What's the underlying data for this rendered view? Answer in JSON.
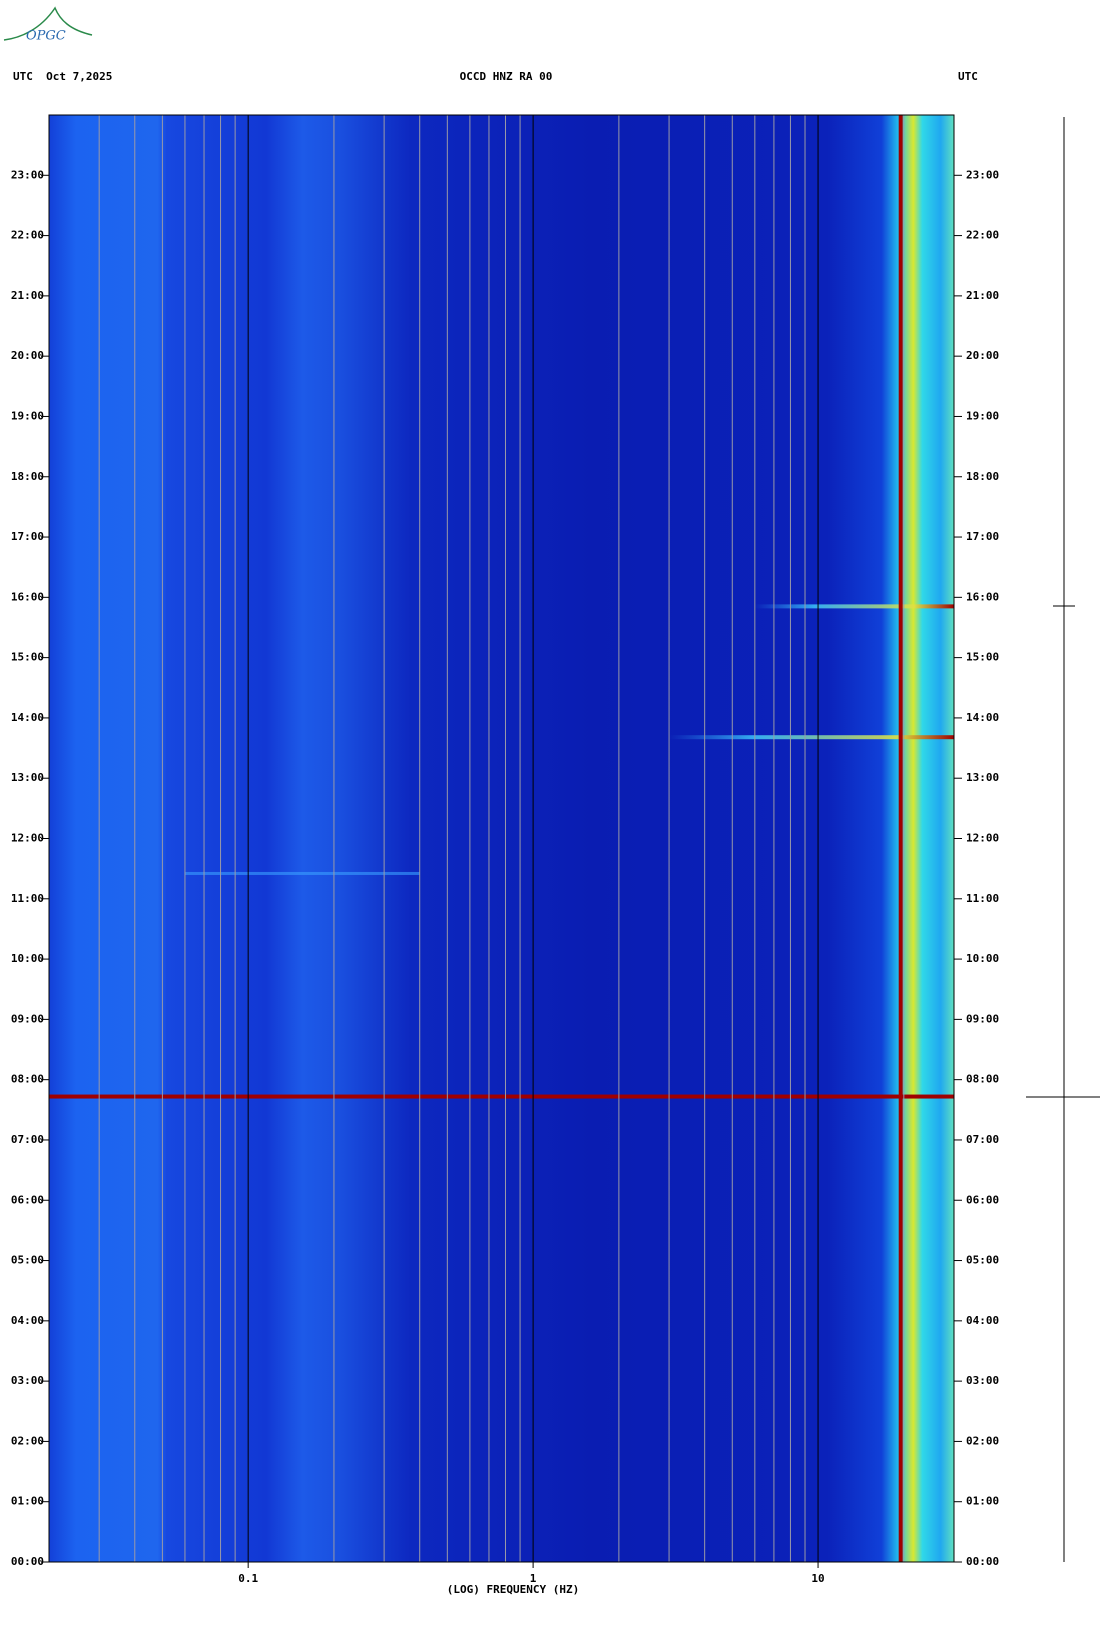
{
  "logo": "OPGC",
  "chart_data": {
    "type": "spectrogram",
    "header_left": "UTC  Oct 7,2025",
    "title": "OCCD HNZ RA 00",
    "header_right": "UTC",
    "x_label": "(LOG) FREQUENCY (HZ)",
    "x_log": true,
    "xlim": [
      0.02,
      30
    ],
    "xticks": [
      0.1,
      1,
      10
    ],
    "x_minor_ticks": [
      0.03,
      0.04,
      0.05,
      0.06,
      0.07,
      0.08,
      0.09,
      0.2,
      0.3,
      0.4,
      0.5,
      0.6,
      0.7,
      0.8,
      0.9,
      2,
      3,
      4,
      5,
      6,
      7,
      8,
      9,
      20
    ],
    "ylim": [
      0,
      24
    ],
    "yticks": [
      {
        "value": 0,
        "label": "00:00"
      },
      {
        "value": 1,
        "label": "01:00"
      },
      {
        "value": 2,
        "label": "02:00"
      },
      {
        "value": 3,
        "label": "03:00"
      },
      {
        "value": 4,
        "label": "04:00"
      },
      {
        "value": 5,
        "label": "05:00"
      },
      {
        "value": 6,
        "label": "06:00"
      },
      {
        "value": 7,
        "label": "07:00"
      },
      {
        "value": 8,
        "label": "08:00"
      },
      {
        "value": 9,
        "label": "09:00"
      },
      {
        "value": 10,
        "label": "10:00"
      },
      {
        "value": 11,
        "label": "11:00"
      },
      {
        "value": 12,
        "label": "12:00"
      },
      {
        "value": 13,
        "label": "13:00"
      },
      {
        "value": 14,
        "label": "14:00"
      },
      {
        "value": 15,
        "label": "15:00"
      },
      {
        "value": 16,
        "label": "16:00"
      },
      {
        "value": 17,
        "label": "17:00"
      },
      {
        "value": 18,
        "label": "18:00"
      },
      {
        "value": 19,
        "label": "19:00"
      },
      {
        "value": 20,
        "label": "20:00"
      },
      {
        "value": 21,
        "label": "21:00"
      },
      {
        "value": 22,
        "label": "22:00"
      },
      {
        "value": 23,
        "label": "23:00"
      }
    ]
  }
}
